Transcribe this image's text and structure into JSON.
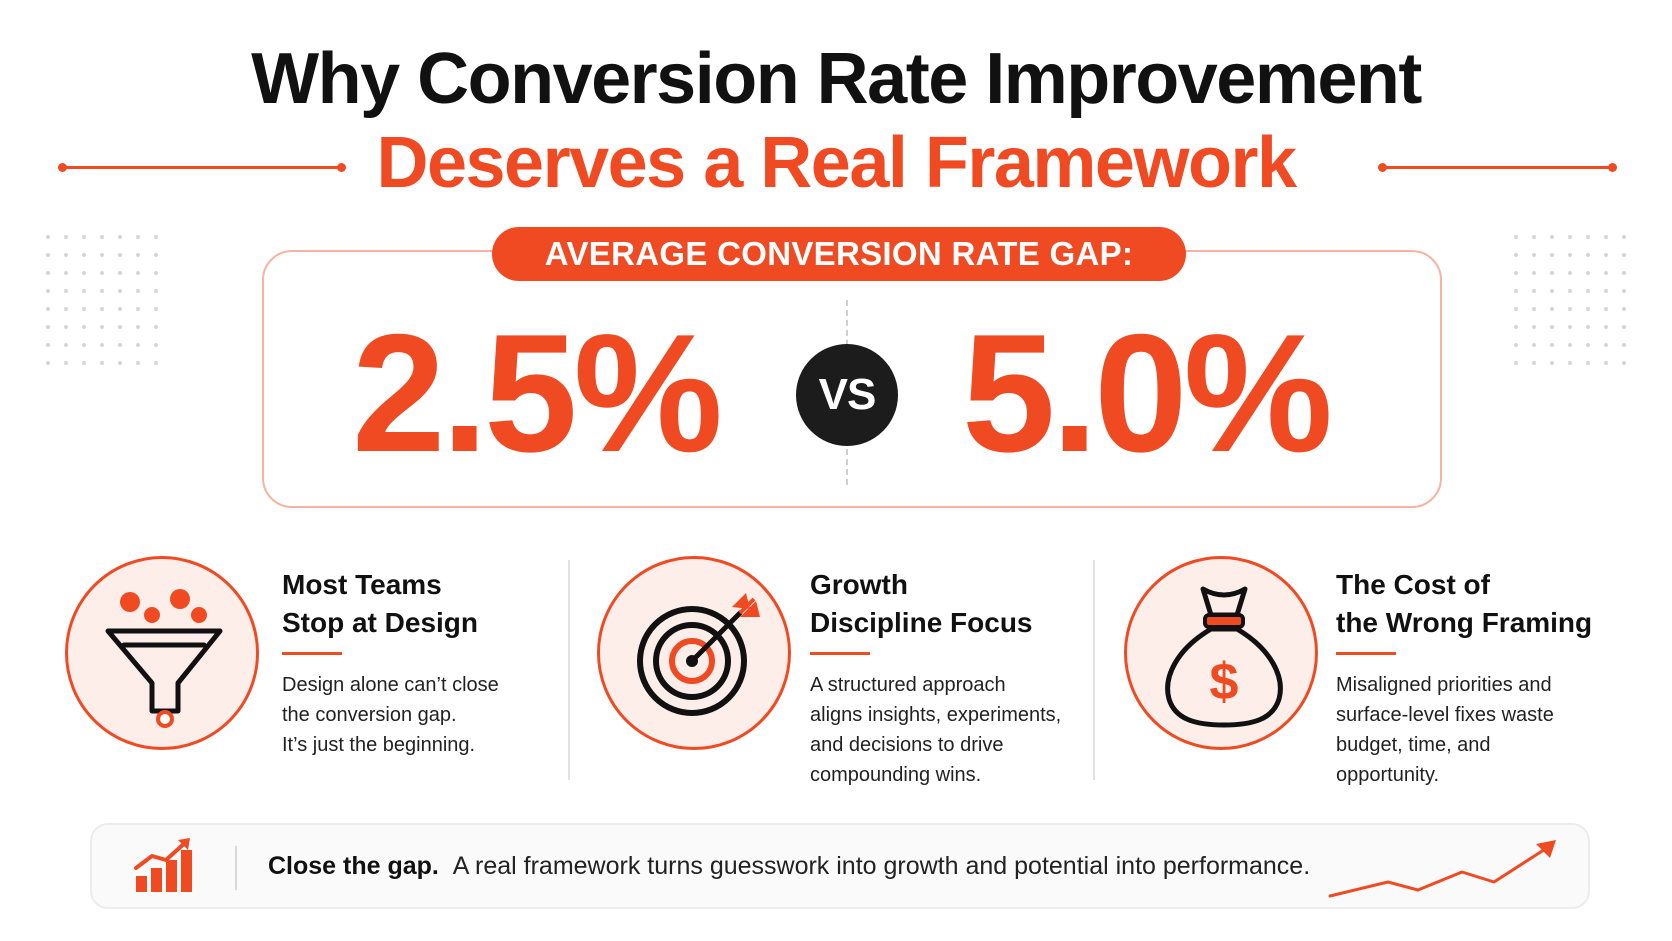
{
  "header": {
    "title_line1": "Why Conversion Rate Improvement",
    "title_line2": "Deserves a Real Framework"
  },
  "stat": {
    "label": "AVERAGE CONVERSION RATE GAP:",
    "left_value": "2.5%",
    "versus": "VS",
    "right_value": "5.0%"
  },
  "features": [
    {
      "icon": "funnel-icon",
      "title_line1": "Most Teams",
      "title_line2": "Stop at Design",
      "desc": [
        "Design alone can’t close",
        "the conversion gap.",
        "It’s just the beginning."
      ]
    },
    {
      "icon": "target-icon",
      "title_line1": "Growth",
      "title_line2": "Discipline Focus",
      "desc": [
        "A structured approach",
        "aligns insights, experiments,",
        "and decisions to drive",
        "compounding wins."
      ]
    },
    {
      "icon": "money-bag-icon",
      "title_line1": "The Cost of",
      "title_line2": "the Wrong Framing",
      "desc": [
        "Misaligned priorities and",
        "surface-level fixes waste",
        "budget, time, and",
        "opportunity."
      ]
    }
  ],
  "banner": {
    "icon": "growth-bar-chart-icon",
    "lead": "Close the gap.",
    "text": "A real framework turns guesswork into growth and potential into performance."
  },
  "colors": {
    "accent": "#f04a23",
    "dark": "#1c1c1c",
    "accent_tint": "#fdeeea"
  }
}
